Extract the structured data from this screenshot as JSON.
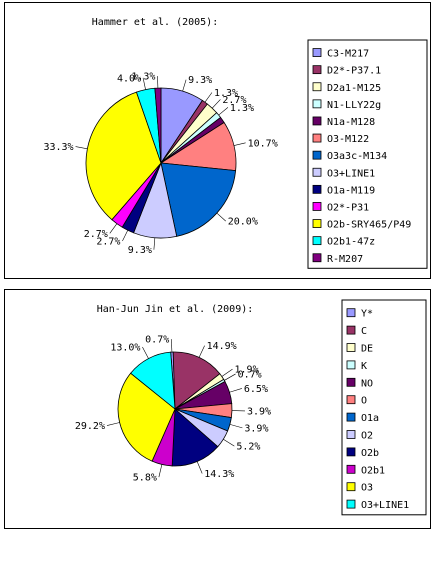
{
  "chart_data": [
    {
      "type": "pie",
      "title": "Hammer et al. (2005):",
      "legend_position": "right",
      "categories": [
        "C3-M217",
        "D2*-P37.1",
        "D2a1-M125",
        "N1-LLY22g",
        "N1a-M128",
        "O3-M122",
        "O3a3c-M134",
        "O3+LINE1",
        "O1a-M119",
        "O2*-P31",
        "O2b-SRY465/P49",
        "O2b1-47z",
        "R-M207"
      ],
      "values": [
        9.3,
        1.3,
        2.7,
        1.3,
        1.3,
        10.7,
        20.0,
        9.3,
        2.7,
        2.7,
        33.3,
        4.0,
        1.3
      ],
      "labels": [
        "9.3%",
        "1.3%",
        "2.7%",
        "1.3%",
        "",
        "10.7%",
        "20.0%",
        "9.3%",
        "2.7%",
        "2.7%",
        "33.3%",
        "4.0%",
        "1.3%"
      ],
      "colors": [
        "#9999FF",
        "#993366",
        "#FFFFCC",
        "#CCFFFF",
        "#660066",
        "#FF8080",
        "#0066CC",
        "#CCCCFF",
        "#000080",
        "#FF00FF",
        "#FFFF00",
        "#00FFFF",
        "#800080"
      ]
    },
    {
      "type": "pie",
      "title": "Han-Jun Jin et al. (2009):",
      "legend_position": "right",
      "categories": [
        "Y*",
        "C",
        "DE",
        "K",
        "NO",
        "O",
        "O1a",
        "O2",
        "O2b",
        "O2b1",
        "O3",
        "O3+LINE1"
      ],
      "values": [
        0.7,
        14.9,
        1.9,
        0.7,
        6.5,
        3.9,
        3.9,
        5.2,
        14.3,
        5.8,
        29.2,
        13.0
      ],
      "labels": [
        "0.7%",
        "14.9%",
        "1.9%",
        "0.7%",
        "6.5%",
        "3.9%",
        "3.9%",
        "5.2%",
        "14.3%",
        "5.8%",
        "29.2%",
        "13.0%"
      ],
      "colors": [
        "#9999FF",
        "#993366",
        "#FFFFCC",
        "#CCFFFF",
        "#660066",
        "#FF8080",
        "#0066CC",
        "#CCCCFF",
        "#000080",
        "#CC00CC",
        "#FFFF00",
        "#00FFFF"
      ]
    }
  ]
}
